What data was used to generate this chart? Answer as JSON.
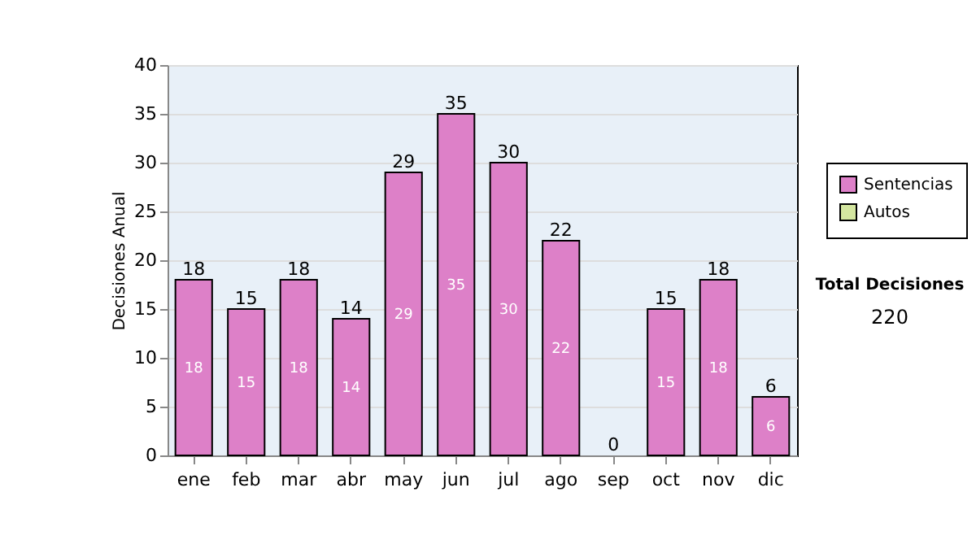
{
  "chart_data": {
    "type": "bar",
    "stacked": true,
    "ylabel": "Decisiones Anual",
    "categories": [
      "ene",
      "feb",
      "mar",
      "abr",
      "may",
      "jun",
      "jul",
      "ago",
      "sep",
      "oct",
      "nov",
      "dic"
    ],
    "series": [
      {
        "name": "Sentencias",
        "color": "#dd80c8",
        "values": [
          18,
          15,
          18,
          14,
          29,
          35,
          30,
          22,
          0,
          15,
          18,
          6
        ],
        "value_labels": [
          "18",
          "15",
          "18",
          "14",
          "29",
          "35",
          "30",
          "22",
          null,
          "15",
          "18",
          "6"
        ]
      },
      {
        "name": "Autos",
        "color": "#d4e6a0",
        "values": [
          0,
          0,
          0,
          0,
          0,
          0,
          0,
          0,
          0,
          0,
          0,
          0
        ]
      }
    ],
    "totals": [
      "18",
      "15",
      "18",
      "14",
      "29",
      "35",
      "30",
      "22",
      "0",
      "15",
      "18",
      "6"
    ],
    "ylim": [
      0,
      40
    ],
    "yticks": [
      0,
      5,
      10,
      15,
      20,
      25,
      30,
      35,
      40
    ],
    "grid": "y",
    "legend": "right",
    "annotations": [
      "Total Decisiones",
      "220"
    ]
  }
}
